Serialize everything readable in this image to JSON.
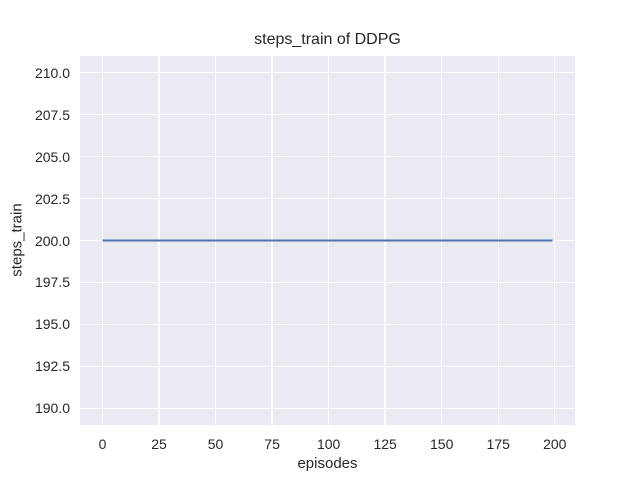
{
  "chart_data": {
    "type": "line",
    "title": "steps_train of DDPG",
    "xlabel": "episodes",
    "ylabel": "steps_train",
    "xlim": [
      -9.95,
      208.95
    ],
    "ylim": [
      189.0,
      211.0
    ],
    "xticks": [
      0,
      25,
      50,
      75,
      100,
      125,
      150,
      175,
      200
    ],
    "xtick_labels": [
      "0",
      "25",
      "50",
      "75",
      "100",
      "125",
      "150",
      "175",
      "200"
    ],
    "yticks": [
      210.0,
      207.5,
      205.0,
      202.5,
      200.0,
      197.5,
      195.0,
      192.5,
      190.0
    ],
    "ytick_labels": [
      "210.0",
      "207.5",
      "205.0",
      "202.5",
      "200.0",
      "197.5",
      "195.0",
      "192.5",
      "190.0"
    ],
    "grid": true,
    "legend": null,
    "series": [
      {
        "name": "steps_train",
        "x": [
          0,
          199
        ],
        "y": [
          200,
          200
        ],
        "color": "#4c72b0",
        "line_width": 2.1
      }
    ],
    "style": {
      "figure_bg": "#ffffff",
      "plot_bg": "#eaeaf2",
      "grid_color": "#ffffff",
      "text_color": "#262626"
    }
  }
}
